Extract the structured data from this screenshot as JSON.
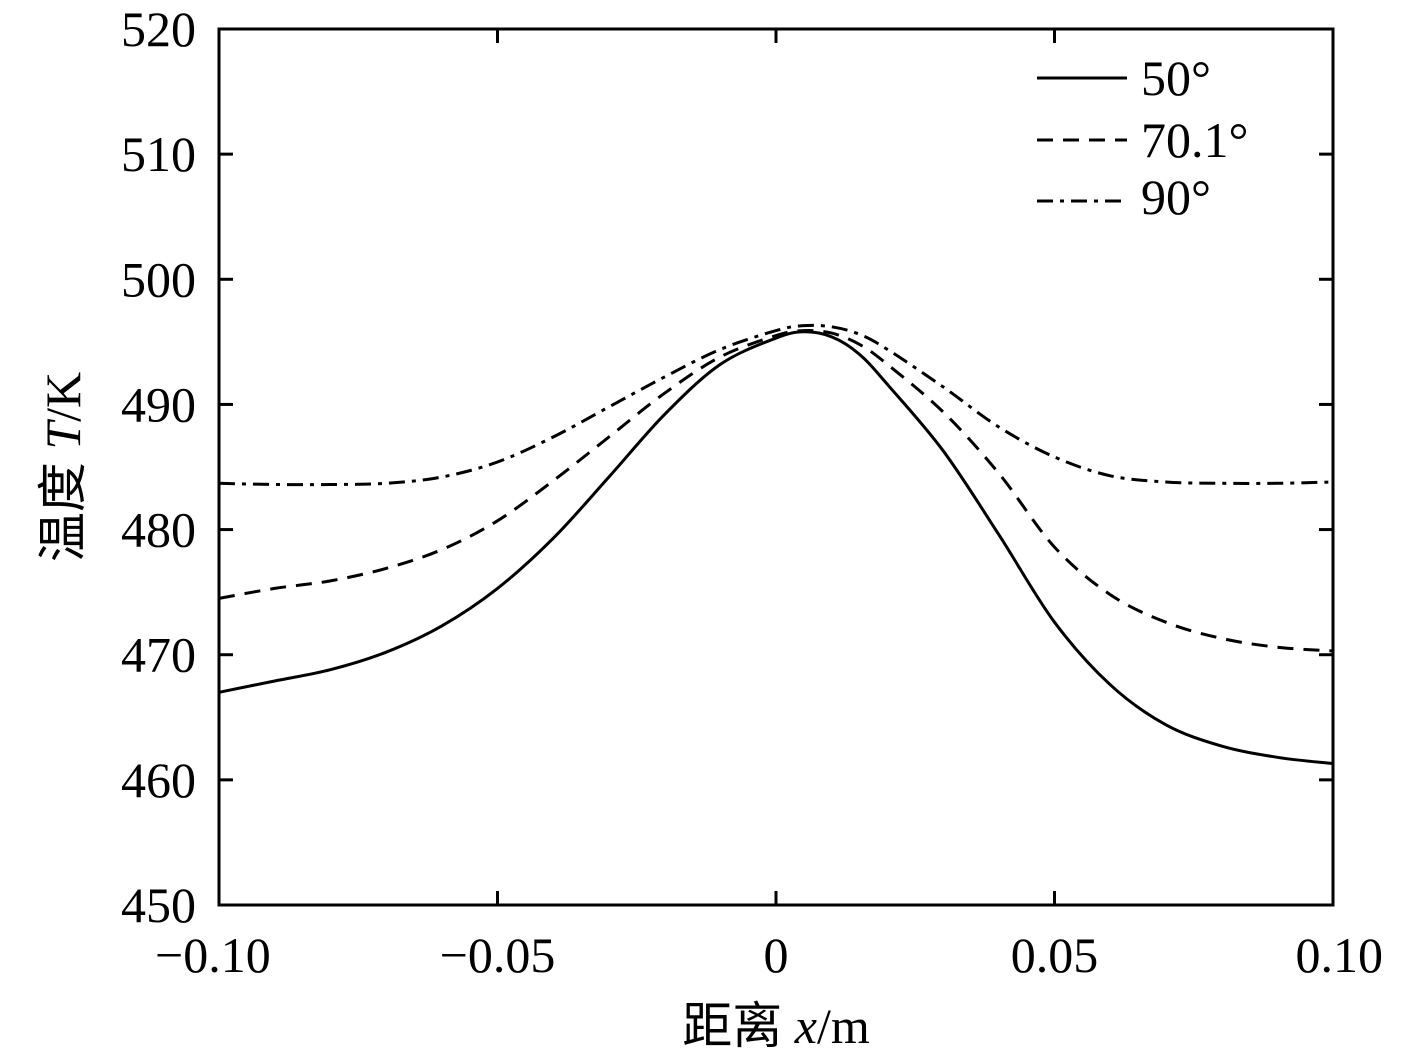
{
  "chart_data": {
    "type": "line",
    "title": "",
    "xlabel": {
      "prefix": "距离 ",
      "var": "x",
      "unit": "/m"
    },
    "ylabel": {
      "prefix": "温度 ",
      "var": "T",
      "unit": "/K"
    },
    "xlim": [
      -0.1,
      0.1
    ],
    "ylim": [
      450,
      520
    ],
    "xticks": [
      -0.1,
      -0.05,
      0,
      0.05,
      0.1
    ],
    "xtick_labels": [
      "−0.10",
      "−0.05",
      "0",
      "0.05",
      "0.10"
    ],
    "yticks": [
      450,
      460,
      470,
      480,
      490,
      500,
      510,
      520
    ],
    "ytick_labels": [
      "450",
      "460",
      "470",
      "480",
      "490",
      "500",
      "510",
      "520"
    ],
    "grid": false,
    "legend_position": "top-right",
    "series": [
      {
        "name": "50°",
        "dash": "solid",
        "x": [
          -0.1,
          -0.09,
          -0.08,
          -0.07,
          -0.06,
          -0.05,
          -0.04,
          -0.03,
          -0.02,
          -0.01,
          0,
          0.005,
          0.01,
          0.015,
          0.02,
          0.03,
          0.04,
          0.05,
          0.06,
          0.07,
          0.08,
          0.09,
          0.1
        ],
        "values": [
          467,
          467.9,
          468.8,
          470.2,
          472.3,
          475.3,
          479.3,
          484.2,
          489.2,
          493.2,
          495.3,
          495.8,
          495.4,
          494.0,
          491.6,
          486.3,
          479.6,
          472.6,
          467.6,
          464.4,
          462.7,
          461.8,
          461.3
        ]
      },
      {
        "name": "70.1°",
        "dash": "dashed",
        "x": [
          -0.1,
          -0.09,
          -0.08,
          -0.07,
          -0.06,
          -0.05,
          -0.04,
          -0.03,
          -0.02,
          -0.01,
          0,
          0.005,
          0.01,
          0.015,
          0.02,
          0.03,
          0.04,
          0.05,
          0.06,
          0.07,
          0.08,
          0.09,
          0.1
        ],
        "values": [
          474.5,
          475.3,
          475.9,
          476.9,
          478.4,
          480.7,
          483.9,
          487.4,
          490.9,
          493.8,
          495.5,
          495.9,
          495.7,
          494.8,
          493.2,
          489.4,
          484.5,
          478.6,
          474.8,
          472.6,
          471.3,
          470.6,
          470.3
        ]
      },
      {
        "name": "90°",
        "dash": "dashdot",
        "x": [
          -0.1,
          -0.09,
          -0.08,
          -0.07,
          -0.06,
          -0.05,
          -0.04,
          -0.03,
          -0.02,
          -0.01,
          0,
          0.005,
          0.01,
          0.015,
          0.02,
          0.03,
          0.04,
          0.05,
          0.06,
          0.07,
          0.08,
          0.09,
          0.1
        ],
        "values": [
          483.7,
          483.6,
          483.6,
          483.7,
          484.2,
          485.4,
          487.4,
          489.8,
          492.2,
          494.4,
          495.9,
          496.3,
          496.2,
          495.6,
          494.4,
          491.4,
          488.2,
          485.8,
          484.3,
          483.8,
          483.7,
          483.7,
          483.8
        ]
      }
    ]
  }
}
